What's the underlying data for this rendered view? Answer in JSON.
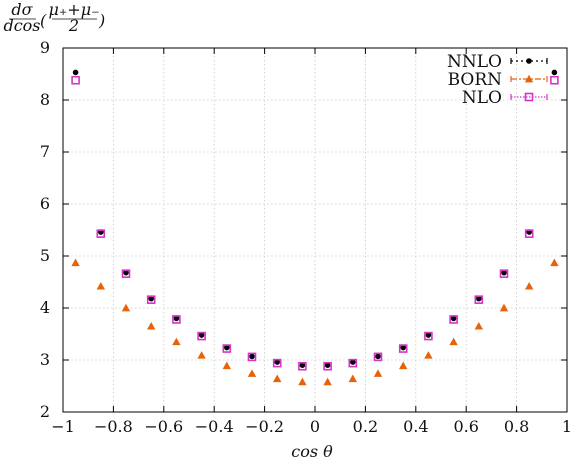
{
  "chart_data": {
    "type": "scatter",
    "title": "",
    "xlabel": "cos θ",
    "ylabel": "dσ/dcos (μ₊+μ₋)/2",
    "ylabel_parts": {
      "frac1_num": "dσ",
      "frac1_den": "dcos",
      "open": "(",
      "frac2_num": "μ₊+μ₋",
      "frac2_den": "2",
      "close": ")"
    },
    "xlim": [
      -1,
      1
    ],
    "ylim": [
      2,
      9
    ],
    "xticks": [
      -1,
      -0.8,
      -0.6,
      -0.4,
      -0.2,
      0,
      0.2,
      0.4,
      0.6,
      0.8,
      1
    ],
    "xtick_labels": [
      "−1",
      "−0.8",
      "−0.6",
      "−0.4",
      "−0.2",
      "0",
      "0.2",
      "0.4",
      "0.6",
      "0.8",
      "1"
    ],
    "yticks": [
      2,
      3,
      4,
      5,
      6,
      7,
      8,
      9
    ],
    "ytick_labels": [
      "2",
      "3",
      "4",
      "5",
      "6",
      "7",
      "8",
      "9"
    ],
    "grid": true,
    "legend_position": "top-right",
    "x": [
      -0.95,
      -0.85,
      -0.75,
      -0.65,
      -0.55,
      -0.45,
      -0.35,
      -0.25,
      -0.15,
      -0.05,
      0.05,
      0.15,
      0.25,
      0.35,
      0.45,
      0.55,
      0.65,
      0.75,
      0.85,
      0.95
    ],
    "series": [
      {
        "name": "NNLO",
        "marker": "circle",
        "color": "#000000",
        "values": [
          8.53,
          5.46,
          4.68,
          4.18,
          3.8,
          3.48,
          3.24,
          3.07,
          2.96,
          2.9,
          2.9,
          2.96,
          3.07,
          3.24,
          3.48,
          3.8,
          4.18,
          4.68,
          5.46,
          8.53
        ]
      },
      {
        "name": "BORN",
        "marker": "triangle",
        "color": "#e8620a",
        "values": [
          4.87,
          4.42,
          4.0,
          3.65,
          3.35,
          3.09,
          2.89,
          2.74,
          2.64,
          2.58,
          2.58,
          2.64,
          2.74,
          2.89,
          3.09,
          3.35,
          3.65,
          4.0,
          4.42,
          4.87
        ]
      },
      {
        "name": "NLO",
        "marker": "square",
        "color": "#d633c8",
        "values": [
          8.38,
          5.43,
          4.66,
          4.16,
          3.78,
          3.46,
          3.22,
          3.06,
          2.94,
          2.88,
          2.88,
          2.94,
          3.06,
          3.22,
          3.46,
          3.78,
          4.16,
          4.66,
          5.43,
          8.38
        ]
      }
    ]
  }
}
